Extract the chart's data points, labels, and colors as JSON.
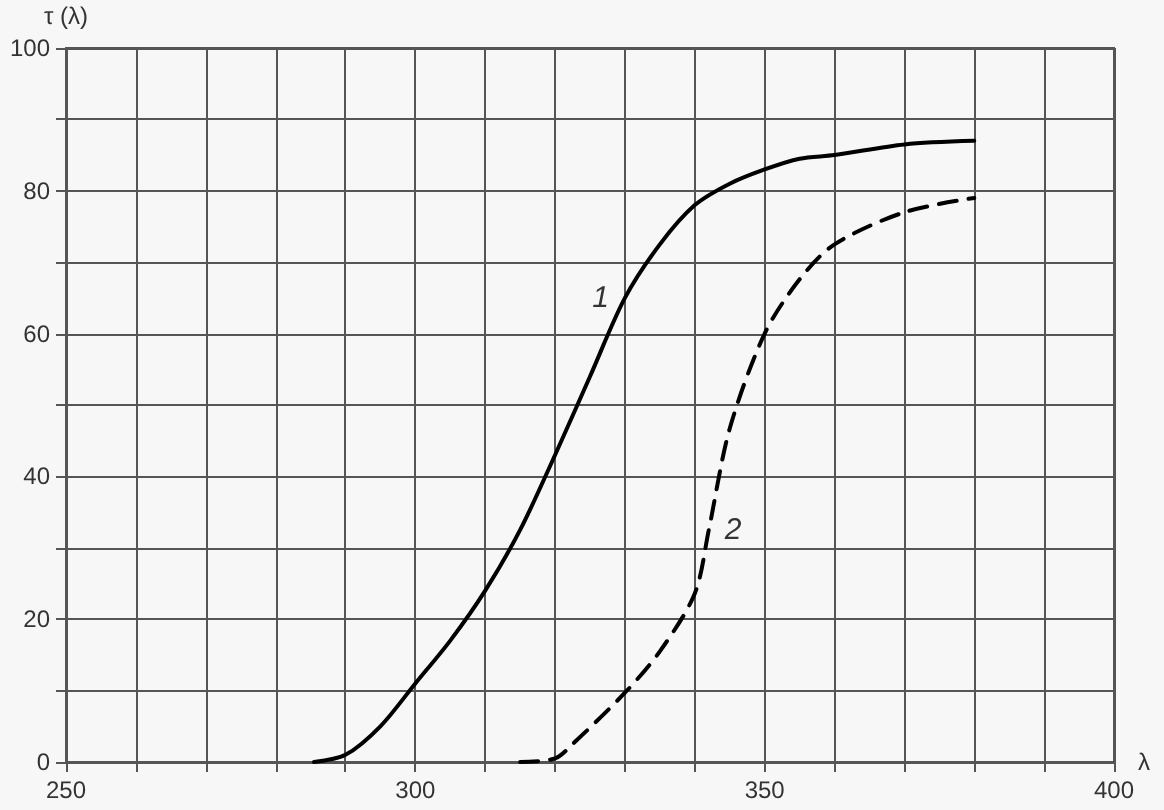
{
  "chart_data": {
    "type": "line",
    "xlabel": "λ",
    "ylabel": "τ (λ)",
    "xlim": [
      250,
      400
    ],
    "ylim": [
      0,
      100
    ],
    "xticks": [
      250,
      {
        "value": 260,
        "label": null
      },
      {
        "value": 270,
        "label": null
      },
      {
        "value": 280,
        "label": null
      },
      {
        "value": 290,
        "label": null
      },
      300,
      {
        "value": 310,
        "label": null
      },
      {
        "value": 320,
        "label": null
      },
      {
        "value": 330,
        "label": null
      },
      {
        "value": 340,
        "label": null
      },
      350,
      {
        "value": 360,
        "label": null
      },
      {
        "value": 370,
        "label": null
      },
      {
        "value": 380,
        "label": null
      },
      {
        "value": 390,
        "label": null
      },
      400
    ],
    "yticks": [
      0,
      {
        "value": 10,
        "label": null
      },
      20,
      {
        "value": 30,
        "label": null
      },
      40,
      {
        "value": 50,
        "label": null
      },
      60,
      {
        "value": 70,
        "label": null
      },
      80,
      {
        "value": 90,
        "label": null
      },
      100
    ],
    "grid": true,
    "marker": "none",
    "series": [
      {
        "name": "1",
        "color": "#000000",
        "line_style": "solid",
        "x": [
          285.5,
          290,
          295,
          300,
          305,
          310,
          315,
          320,
          325,
          330,
          335,
          340,
          345,
          350,
          355,
          360,
          370,
          380
        ],
        "values": [
          0,
          1,
          5,
          11,
          17,
          24,
          32.5,
          43,
          54,
          65,
          72.5,
          78,
          81,
          83,
          84.5,
          85,
          86.5,
          87
        ]
      },
      {
        "name": "2",
        "color": "#000000",
        "line_style": "dashed",
        "x": [
          315,
          320,
          322.5,
          330,
          335,
          340,
          342,
          345,
          350,
          355,
          360,
          370,
          380
        ],
        "values": [
          0,
          0.5,
          2.5,
          9.7,
          15.5,
          23.6,
          32.5,
          46.7,
          60,
          67.6,
          72.5,
          77,
          79
        ]
      }
    ]
  }
}
